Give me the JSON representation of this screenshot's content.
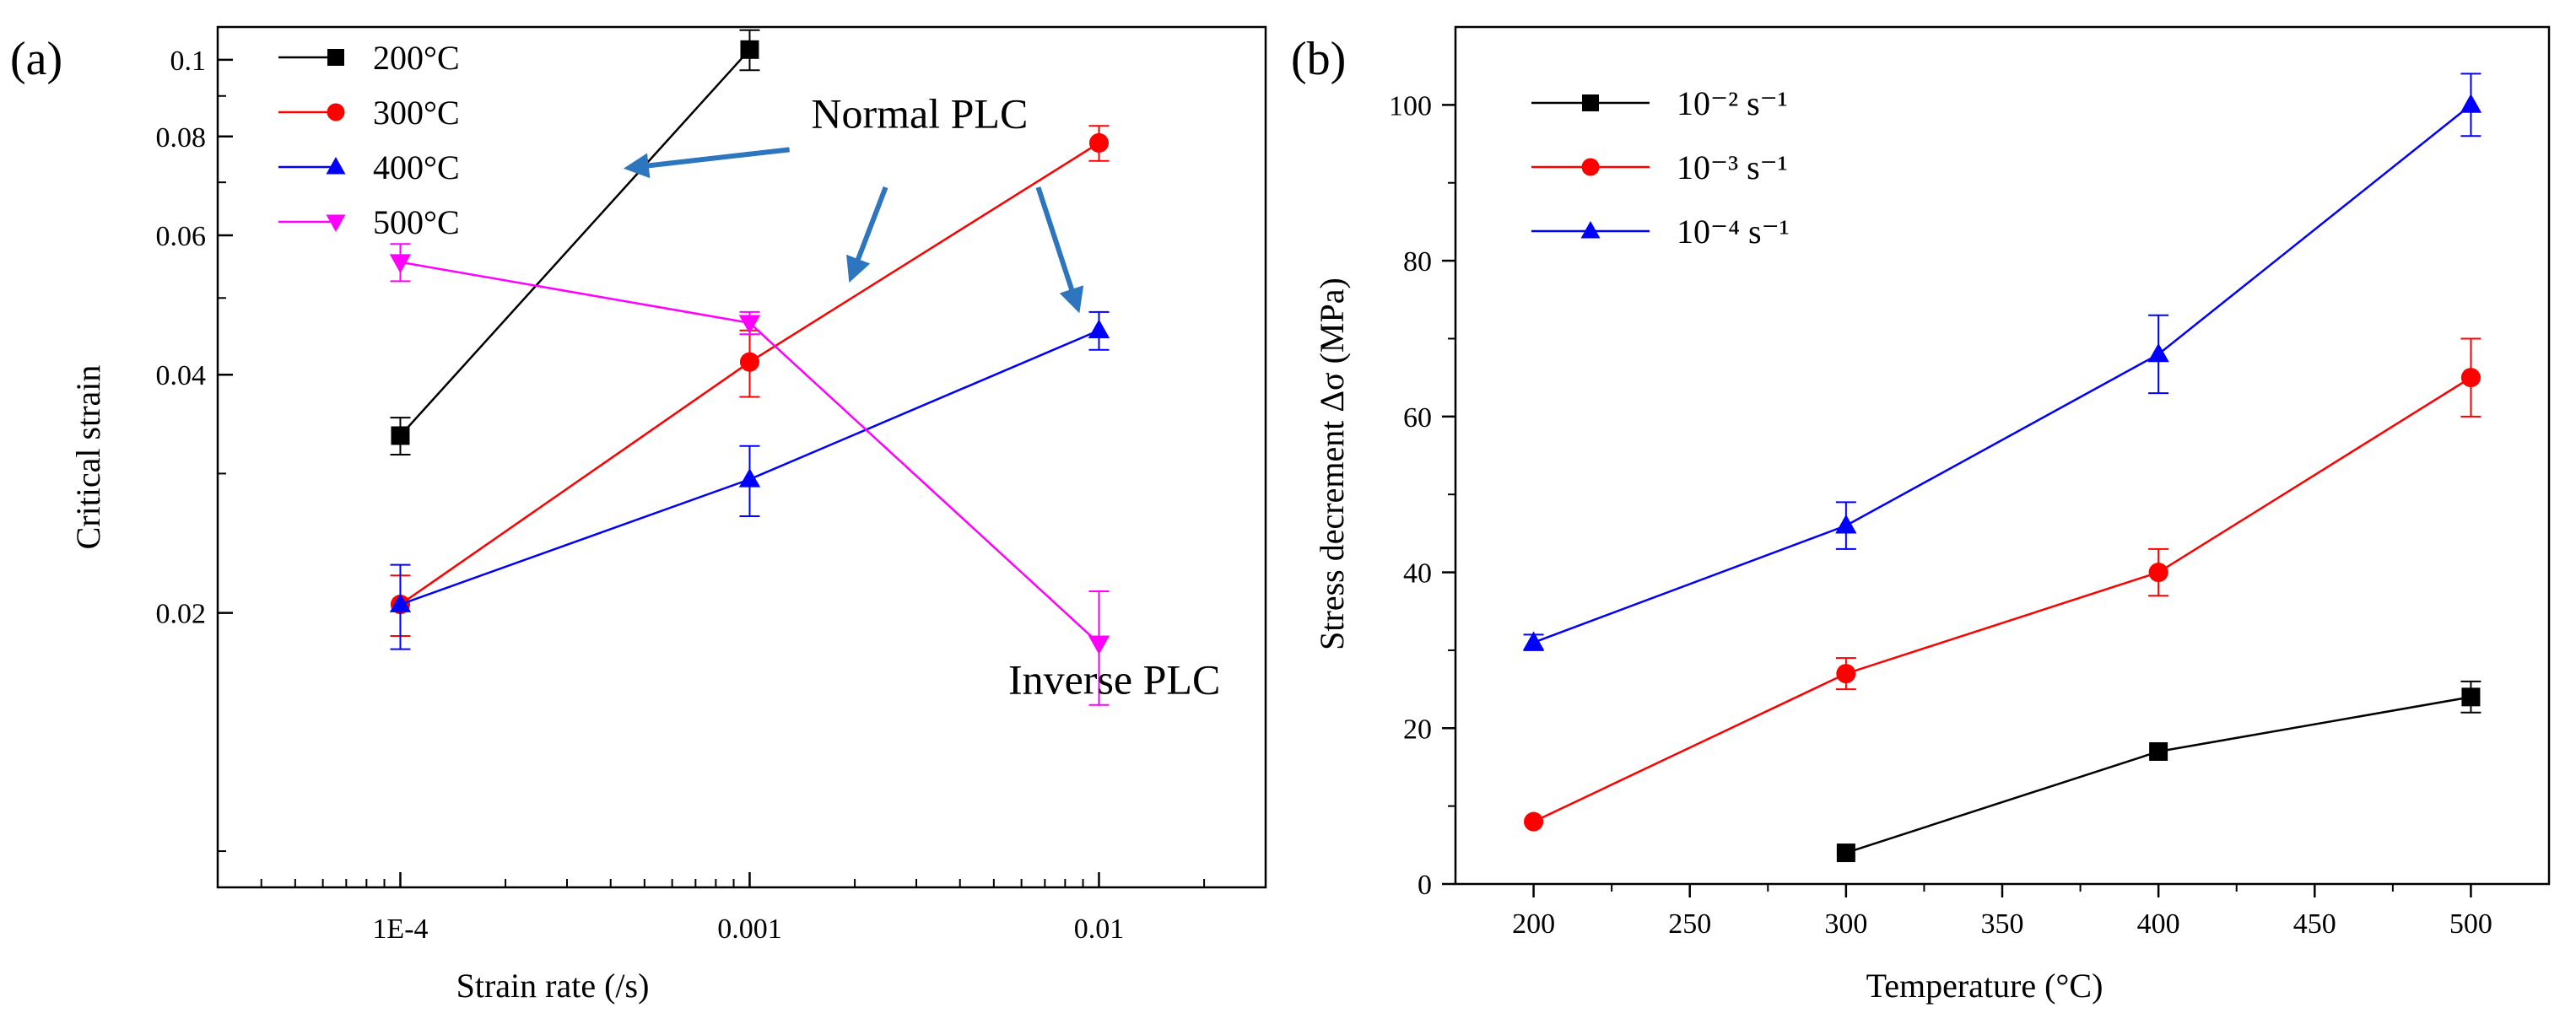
{
  "chart_data": [
    {
      "type": "line",
      "panel_label": "(a)",
      "xscale": "log",
      "yscale": "log",
      "xlabel": "Strain rate (/s)",
      "ylabel": "Critical strain",
      "xlim": [
        3e-05,
        0.03
      ],
      "ylim": [
        0.009,
        0.11
      ],
      "xticks": [
        {
          "value": 0.0001,
          "label": "1E-4"
        },
        {
          "value": 0.001,
          "label": "0.001"
        },
        {
          "value": 0.01,
          "label": "0.01"
        }
      ],
      "yticks": [
        {
          "value": 0.02,
          "label": "0.02"
        },
        {
          "value": 0.04,
          "label": "0.04"
        },
        {
          "value": 0.06,
          "label": "0.06"
        },
        {
          "value": 0.08,
          "label": "0.08"
        },
        {
          "value": 0.1,
          "label": "0.1"
        }
      ],
      "legend_position": "top-left",
      "series": [
        {
          "name": "200°C",
          "color": "#000000",
          "marker": "square",
          "x": [
            0.0001,
            0.001
          ],
          "y": [
            0.0335,
            0.103
          ],
          "err": [
            0.0018,
            0.006
          ]
        },
        {
          "name": "300°C",
          "color": "#ff0000",
          "marker": "circle",
          "x": [
            0.0001,
            0.001,
            0.01
          ],
          "y": [
            0.0205,
            0.0415,
            0.0785
          ],
          "err": [
            0.0018,
            0.004,
            0.004
          ]
        },
        {
          "name": "400°C",
          "color": "#0000ff",
          "marker": "triangle-up",
          "x": [
            0.0001,
            0.001,
            0.01
          ],
          "y": [
            0.0205,
            0.0295,
            0.0455
          ],
          "err": [
            0.0025,
            0.003,
            0.0025
          ]
        },
        {
          "name": "500°C",
          "color": "#ff00ff",
          "marker": "triangle-down",
          "x": [
            0.0001,
            0.001,
            0.01
          ],
          "y": [
            0.0555,
            0.0465,
            0.0183
          ],
          "err": [
            0.003,
            0.0015,
            0.003
          ]
        }
      ],
      "annotations": [
        {
          "text": "Normal PLC",
          "x": 0.0015,
          "y": 0.082
        },
        {
          "text": "Inverse PLC",
          "x": 0.0055,
          "y": 0.0158
        }
      ],
      "arrows": [
        {
          "from": [
            0.0013,
            0.077
          ],
          "to": [
            0.00045,
            0.073
          ]
        },
        {
          "from": [
            0.00245,
            0.069
          ],
          "to": [
            0.00195,
            0.053
          ]
        },
        {
          "from": [
            0.0067,
            0.069
          ],
          "to": [
            0.0087,
            0.0485
          ]
        }
      ],
      "arrow_color": "#2e75c0"
    },
    {
      "type": "line",
      "panel_label": "(b)",
      "xlabel": "Temperature (°C)",
      "ylabel": "Stress decrement Δσ (MPa)",
      "xlim": [
        175,
        525
      ],
      "ylim": [
        0,
        110
      ],
      "xticks": [
        200,
        250,
        300,
        350,
        400,
        450,
        500
      ],
      "yticks": [
        0,
        20,
        40,
        60,
        80,
        100
      ],
      "legend_position": "top-left",
      "series": [
        {
          "name": "10⁻² s⁻¹",
          "color": "#000000",
          "marker": "square",
          "x": [
            300,
            400,
            500
          ],
          "y": [
            4,
            17,
            24
          ],
          "err": [
            0,
            0,
            2
          ]
        },
        {
          "name": "10⁻³ s⁻¹",
          "color": "#ff0000",
          "marker": "circle",
          "x": [
            200,
            300,
            400,
            500
          ],
          "y": [
            8,
            27,
            40,
            65
          ],
          "err": [
            0,
            2,
            3,
            5
          ]
        },
        {
          "name": "10⁻⁴ s⁻¹",
          "color": "#0000ff",
          "marker": "triangle-up",
          "x": [
            200,
            300,
            400,
            500
          ],
          "y": [
            31,
            46,
            68,
            100
          ],
          "err": [
            1,
            3,
            5,
            4
          ]
        }
      ]
    }
  ]
}
